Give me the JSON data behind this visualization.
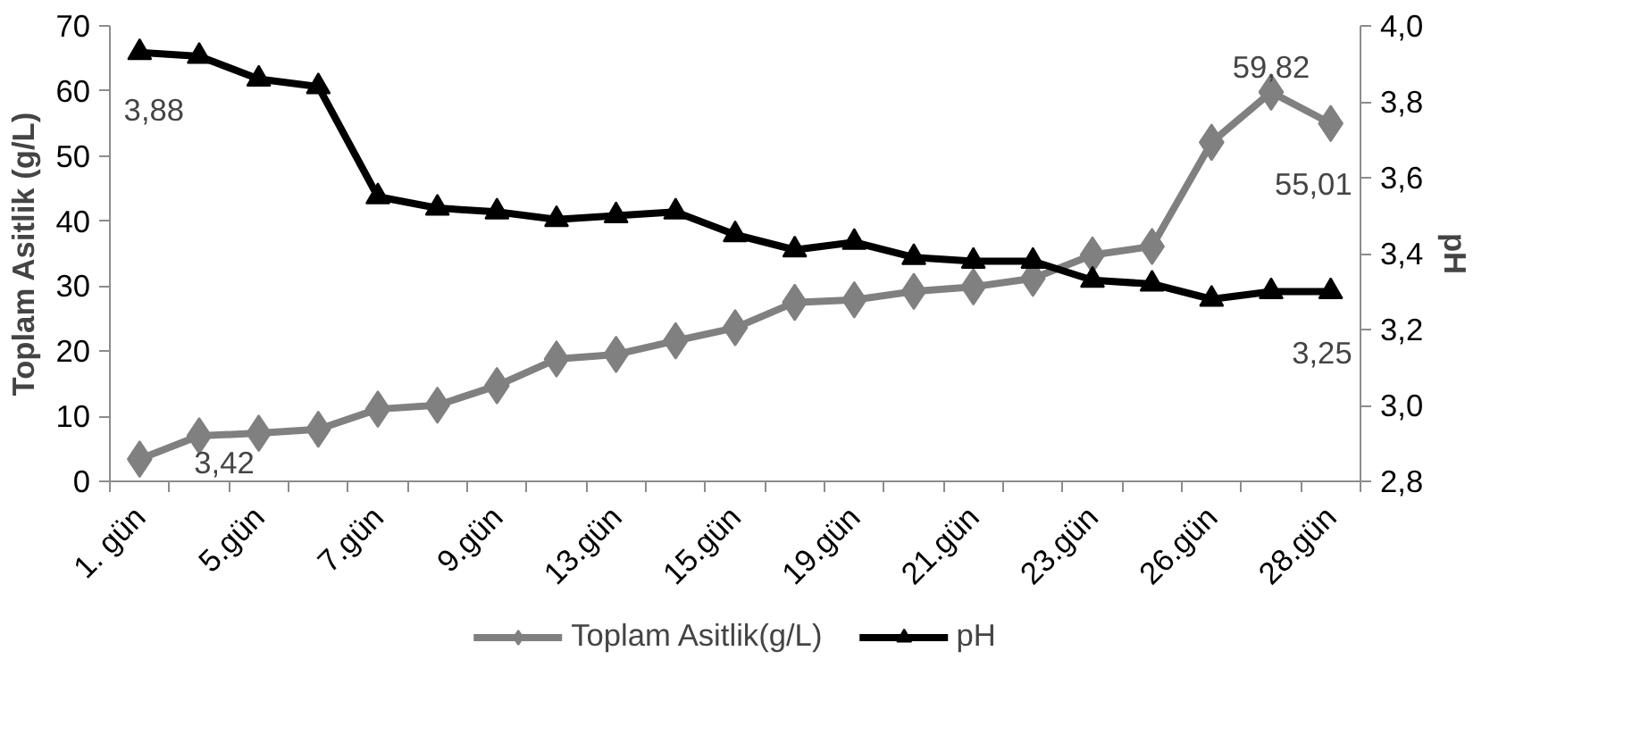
{
  "chart_data": {
    "type": "line",
    "ylabel": "Toplam Asitlik (g/L)",
    "y2label": "pH",
    "categories": [
      "1. gün",
      null,
      "5.gün",
      null,
      "7.gün",
      null,
      "9.gün",
      null,
      "13.gün",
      null,
      "15.gün",
      null,
      "19.gün",
      null,
      "21.gün",
      null,
      "23.gün",
      null,
      "26.gün",
      null,
      "28.gün"
    ],
    "series": [
      {
        "name": "Toplam Asitlik(g/L)",
        "color": "#808080",
        "marker": "diamond",
        "values": [
          3.42,
          7.0,
          7.4,
          8.0,
          11.1,
          11.7,
          14.7,
          18.8,
          19.5,
          21.6,
          23.6,
          27.5,
          27.9,
          29.2,
          29.9,
          31.2,
          34.8,
          36.1,
          52.1,
          59.82,
          55.01
        ]
      },
      {
        "name": "pH",
        "color": "#000000",
        "marker": "triangle",
        "axis": "y2",
        "values": [
          3.93,
          3.92,
          3.86,
          3.84,
          3.55,
          3.52,
          3.51,
          3.49,
          3.5,
          3.51,
          3.45,
          3.41,
          3.43,
          3.39,
          3.38,
          3.38,
          3.33,
          3.32,
          3.28,
          3.3,
          3.3
        ]
      }
    ],
    "ylim": [
      0,
      70
    ],
    "yticks": [
      0,
      10,
      20,
      30,
      40,
      50,
      60,
      70
    ],
    "y2lim": [
      2.8,
      4.0
    ],
    "y2ticks": [
      {
        "value": 2.8,
        "label": "2,8"
      },
      {
        "value": 3.0,
        "label": "3,0"
      },
      {
        "value": 3.2,
        "label": "3,2"
      },
      {
        "value": 3.4,
        "label": "3,4"
      },
      {
        "value": 3.6,
        "label": "3,6"
      },
      {
        "value": 3.8,
        "label": "3,8"
      },
      {
        "value": 4.0,
        "label": "4,0"
      }
    ],
    "annotations": [
      "3,88",
      "3,42",
      "59,82",
      "55,01",
      "3,25"
    ],
    "legend": "bottom",
    "grid": false,
    "line_style": "solid"
  }
}
